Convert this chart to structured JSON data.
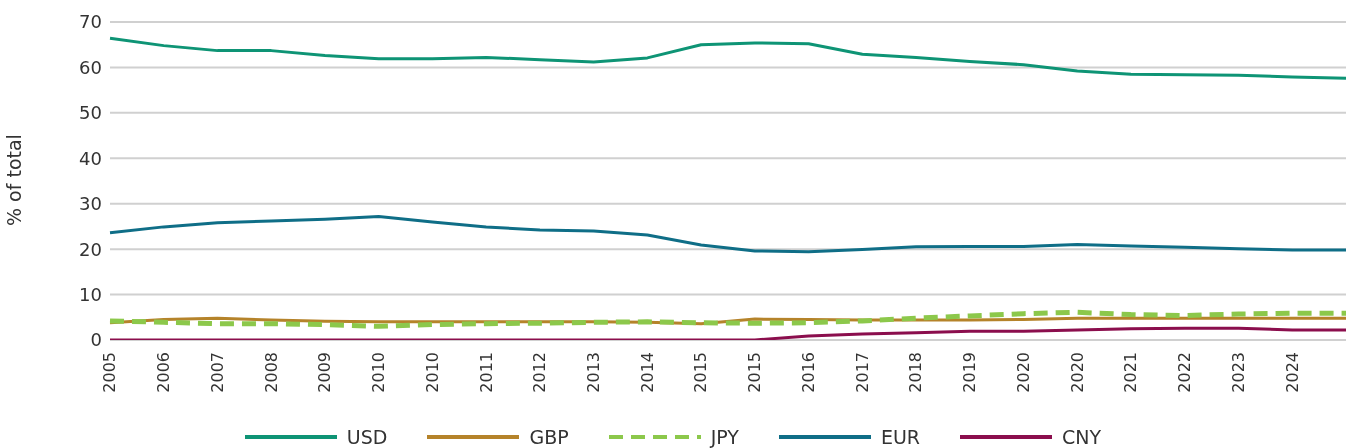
{
  "chart_data": {
    "type": "line",
    "ylabel": "% of total",
    "categories": [
      "2005",
      "2006",
      "2007",
      "2008",
      "2009",
      "2010",
      "2010",
      "2011",
      "2012",
      "2013",
      "2014",
      "2015",
      "2015",
      "2016",
      "2017",
      "2018",
      "2019",
      "2020",
      "2020",
      "2021",
      "2022",
      "2023",
      "2024",
      null
    ],
    "ylim": [
      0,
      70
    ],
    "yticks": [
      0,
      10,
      20,
      30,
      40,
      50,
      60,
      70
    ],
    "grid": "y",
    "legend": "bottom",
    "marker": "none",
    "series": [
      {
        "name": "USD",
        "color": "#0e9475",
        "values": [
          66.4,
          64.8,
          63.7,
          63.7,
          62.6,
          61.9,
          61.9,
          62.2,
          61.7,
          61.2,
          62.1,
          65.0,
          65.4,
          65.2,
          62.9,
          62.2,
          61.3,
          60.6,
          59.2,
          58.5,
          58.4,
          58.3,
          57.9,
          57.6
        ]
      },
      {
        "name": "GBP",
        "color": "#b5832a",
        "values": [
          3.8,
          4.5,
          4.8,
          4.4,
          4.1,
          4.0,
          4.0,
          4.0,
          4.0,
          4.0,
          3.9,
          3.6,
          4.6,
          4.5,
          4.4,
          4.4,
          4.4,
          4.5,
          4.8,
          4.8,
          4.8,
          4.8,
          4.8,
          4.8
        ]
      },
      {
        "name": "JPY",
        "color": "#8cc84b",
        "line_style": "dashed",
        "values": [
          4.2,
          3.9,
          3.6,
          3.6,
          3.4,
          3.0,
          3.4,
          3.6,
          3.7,
          3.9,
          4.0,
          3.8,
          3.7,
          3.8,
          4.2,
          4.8,
          5.3,
          5.8,
          6.1,
          5.6,
          5.4,
          5.7,
          5.9,
          5.9
        ]
      },
      {
        "name": "EUR",
        "color": "#0f6e87",
        "values": [
          23.6,
          24.9,
          25.8,
          26.2,
          26.6,
          27.2,
          26.0,
          24.9,
          24.2,
          24.0,
          23.1,
          20.9,
          19.6,
          19.4,
          19.9,
          20.5,
          20.6,
          20.6,
          21.0,
          20.7,
          20.4,
          20.1,
          19.8,
          19.8
        ]
      },
      {
        "name": "CNY",
        "color": "#8b0e4d",
        "values": [
          0,
          0,
          0,
          0,
          0,
          0,
          0,
          0,
          0,
          0,
          0,
          0,
          0,
          0.9,
          1.3,
          1.6,
          1.9,
          1.9,
          2.2,
          2.5,
          2.6,
          2.6,
          2.2,
          2.2
        ]
      }
    ]
  }
}
